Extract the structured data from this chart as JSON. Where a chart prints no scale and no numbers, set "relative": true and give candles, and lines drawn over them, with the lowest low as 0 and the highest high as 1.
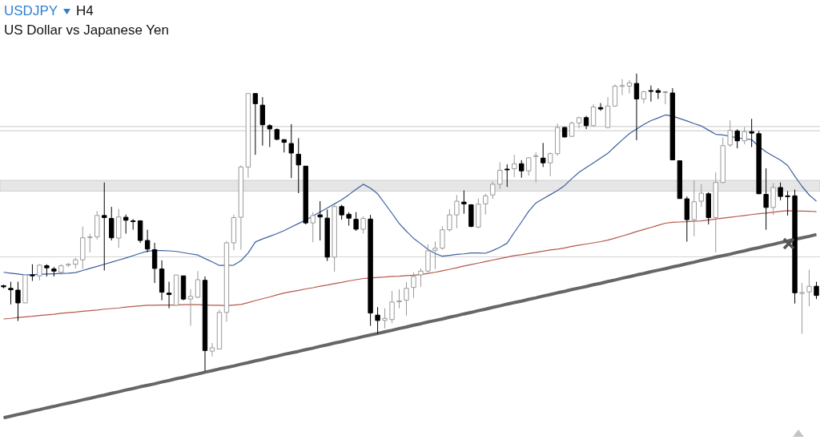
{
  "chart_data": {
    "type": "candlestick",
    "title": "USDJPY",
    "subtitle": "US Dollar vs Japanese Yen",
    "annotations": [
      "H4"
    ],
    "relative": true,
    "grid": false,
    "legend": false,
    "marker": "none",
    "colors": [
      "#000000",
      "#000000",
      "#000000",
      "#ffffff",
      "#000000",
      "#ffffff",
      "#000000",
      "#000000",
      "#ffffff",
      "#ffffff",
      "#ffffff",
      "#ffffff",
      "#ffffff",
      "#ffffff",
      "#000000",
      "#000000",
      "#ffffff",
      "#000000",
      "#000000",
      "#000000",
      "#000000",
      "#000000",
      "#000000",
      "#000000",
      "#ffffff",
      "#000000",
      "#ffffff",
      "#ffffff",
      "#000000",
      "#ffffff",
      "#ffffff",
      "#ffffff",
      "#ffffff",
      "#ffffff",
      "#ffffff",
      "#000000",
      "#000000",
      "#000000",
      "#000000",
      "#000000",
      "#000000",
      "#000000",
      "#000000",
      "#ffffff",
      "#000000",
      "#000000",
      "#ffffff",
      "#000000",
      "#000000",
      "#000000",
      "#ffffff",
      "#000000",
      "#000000",
      "#ffffff",
      "#ffffff",
      "#ffffff",
      "#ffffff",
      "#ffffff",
      "#ffffff",
      "#ffffff",
      "#ffffff",
      "#ffffff",
      "#ffffff",
      "#ffffff",
      "#000000",
      "#000000",
      "#ffffff",
      "#ffffff",
      "#ffffff",
      "#ffffff",
      "#000000",
      "#ffffff",
      "#000000",
      "#ffffff",
      "#ffffff",
      "#000000",
      "#ffffff",
      "#ffffff",
      "#000000",
      "#ffffff",
      "#ffffff",
      "#000000",
      "#ffffff",
      "#000000",
      "#ffffff",
      "#ffffff",
      "#ffffff",
      "#ffffff",
      "#000000",
      "#ffffff",
      "#000000",
      "#000000",
      "#ffffff",
      "#000000",
      "#000000",
      "#000000",
      "#ffffff",
      "#ffffff",
      "#000000",
      "#ffffff",
      "#ffffff",
      "#ffffff",
      "#000000",
      "#ffffff",
      "#000000",
      "#000000",
      "#000000",
      "#ffffff",
      "#000000",
      "#000000",
      "#000000",
      "#ffffff",
      "#ffffff",
      "#000000"
    ],
    "categories": [
      null,
      null,
      null,
      null,
      null,
      null,
      null,
      null,
      null,
      null,
      null,
      null,
      null,
      null,
      null,
      null,
      null,
      null,
      null,
      null,
      null,
      null,
      null,
      null,
      null,
      null,
      null,
      null,
      null,
      null,
      null,
      null,
      null,
      null,
      null,
      null,
      null,
      null,
      null,
      null,
      null,
      null,
      null,
      null,
      null,
      null,
      null,
      null,
      null,
      null,
      null,
      null,
      null,
      null,
      null,
      null,
      null,
      null,
      null,
      null,
      null,
      null,
      null,
      null,
      null,
      null,
      null,
      null,
      null,
      null,
      null,
      null,
      null,
      null,
      null,
      null,
      null,
      null,
      null,
      null,
      null,
      null,
      null,
      null,
      null,
      null,
      null,
      null,
      null,
      null,
      null,
      null,
      null,
      null,
      null,
      null,
      null,
      null,
      null,
      null,
      null,
      null,
      null,
      null,
      null,
      null,
      null,
      null,
      null,
      null,
      null,
      null,
      null,
      null
    ],
    "ohlc": [
      [
        0.287,
        0.29,
        0.278,
        0.283
      ],
      [
        0.278,
        0.3,
        0.224,
        0.273
      ],
      [
        0.272,
        0.3,
        0.168,
        0.229
      ],
      [
        0.229,
        0.323,
        0.229,
        0.323
      ],
      [
        0.323,
        0.359,
        0.303,
        0.32
      ],
      [
        0.32,
        0.359,
        0.305,
        0.356
      ],
      [
        0.354,
        0.359,
        0.318,
        0.347
      ],
      [
        0.343,
        0.35,
        0.318,
        0.336
      ],
      [
        0.332,
        0.359,
        0.323,
        0.354
      ],
      [
        0.356,
        0.363,
        0.35,
        0.359
      ],
      [
        0.359,
        0.381,
        0.345,
        0.374
      ],
      [
        0.374,
        0.486,
        0.343,
        0.448
      ],
      [
        0.449,
        0.462,
        0.399,
        0.451
      ],
      [
        0.451,
        0.538,
        0.442,
        0.523
      ],
      [
        0.523,
        0.634,
        0.338,
        0.516
      ],
      [
        0.513,
        0.552,
        0.439,
        0.448
      ],
      [
        0.447,
        0.545,
        0.414,
        0.518
      ],
      [
        0.517,
        0.526,
        0.462,
        0.507
      ],
      [
        0.505,
        0.511,
        0.475,
        0.503
      ],
      [
        0.505,
        0.507,
        0.431,
        0.439
      ],
      [
        0.439,
        0.475,
        0.399,
        0.41
      ],
      [
        0.408,
        0.431,
        0.296,
        0.345
      ],
      [
        0.343,
        0.372,
        0.238,
        0.265
      ],
      [
        0.262,
        0.3,
        0.211,
        0.257
      ],
      [
        0.221,
        0.323,
        0.22,
        0.323
      ],
      [
        0.32,
        0.32,
        0.238,
        0.242
      ],
      [
        0.242,
        0.275,
        0.152,
        0.251
      ],
      [
        0.248,
        0.336,
        0.245,
        0.307
      ],
      [
        0.305,
        0.318,
        0,
        0.069
      ],
      [
        0.067,
        0.094,
        0.049,
        0.078
      ],
      [
        0.074,
        0.206,
        0.074,
        0.197
      ],
      [
        0.197,
        0.437,
        0.166,
        0.431
      ],
      [
        0.431,
        0.526,
        0.406,
        0.516
      ],
      [
        0.517,
        0.691,
        0.408,
        0.686
      ],
      [
        0.686,
        0.933,
        0.65,
        0.933
      ],
      [
        0.933,
        0.933,
        0.727,
        0.899
      ],
      [
        0.894,
        0.921,
        0.758,
        0.828
      ],
      [
        0.825,
        0.83,
        0.753,
        0.814
      ],
      [
        0.812,
        0.816,
        0.776,
        0.779
      ],
      [
        0.778,
        0.78,
        0.735,
        0.769
      ],
      [
        0.765,
        0.83,
        0.649,
        0.733
      ],
      [
        0.729,
        0.783,
        0.598,
        0.693
      ],
      [
        0.689,
        0.689,
        0.493,
        0.498
      ],
      [
        0.498,
        0.534,
        0.433,
        0.523
      ],
      [
        0.525,
        0.571,
        0.439,
        0.518
      ],
      [
        0.514,
        0.543,
        0.37,
        0.383
      ],
      [
        0.383,
        0.559,
        0.334,
        0.553
      ],
      [
        0.553,
        0.559,
        0.509,
        0.525
      ],
      [
        0.527,
        0.534,
        0.489,
        0.514
      ],
      [
        0.51,
        0.534,
        0.471,
        0.477
      ],
      [
        0.477,
        0.52,
        0.462,
        0.513
      ],
      [
        0.511,
        0.525,
        0.152,
        0.195
      ],
      [
        0.188,
        0.215,
        0.125,
        0.17
      ],
      [
        0.17,
        0.211,
        0.143,
        0.177
      ],
      [
        0.173,
        0.269,
        0.161,
        0.232
      ],
      [
        0.233,
        0.275,
        0.211,
        0.236
      ],
      [
        0.238,
        0.3,
        0.186,
        0.278
      ],
      [
        0.281,
        0.332,
        0.246,
        0.318
      ],
      [
        0.323,
        0.345,
        0.283,
        0.336
      ],
      [
        0.336,
        0.426,
        0.332,
        0.404
      ],
      [
        0.406,
        0.435,
        0.343,
        0.413
      ],
      [
        0.413,
        0.487,
        0.408,
        0.475
      ],
      [
        0.475,
        0.544,
        0.469,
        0.525
      ],
      [
        0.525,
        0.592,
        0.48,
        0.571
      ],
      [
        0.568,
        0.607,
        0.529,
        0.562
      ],
      [
        0.559,
        0.561,
        0.484,
        0.486
      ],
      [
        0.484,
        0.58,
        0.48,
        0.561
      ],
      [
        0.562,
        0.596,
        0.526,
        0.589
      ],
      [
        0.592,
        0.637,
        0.579,
        0.628
      ],
      [
        0.628,
        0.702,
        0.612,
        0.675
      ],
      [
        0.679,
        0.695,
        0.619,
        0.677
      ],
      [
        0.68,
        0.727,
        0.652,
        0.697
      ],
      [
        0.697,
        0.709,
        0.65,
        0.673
      ],
      [
        0.673,
        0.719,
        0.657,
        0.717
      ],
      [
        0.722,
        0.735,
        0.634,
        0.724
      ],
      [
        0.716,
        0.767,
        0.686,
        0.7
      ],
      [
        0.7,
        0.735,
        0.655,
        0.731
      ],
      [
        0.731,
        0.832,
        0.724,
        0.819
      ],
      [
        0.819,
        0.821,
        0.785,
        0.787
      ],
      [
        0.789,
        0.839,
        0.787,
        0.834
      ],
      [
        0.834,
        0.855,
        0.816,
        0.852
      ],
      [
        0.852,
        0.858,
        0.813,
        0.825
      ],
      [
        0.825,
        0.897,
        0.822,
        0.888
      ],
      [
        0.886,
        0.901,
        0.875,
        0.881
      ],
      [
        0.819,
        0.921,
        0.816,
        0.891
      ],
      [
        0.891,
        0.964,
        0.888,
        0.958
      ],
      [
        0.957,
        0.982,
        0.928,
        0.96
      ],
      [
        0.958,
        0.978,
        0.933,
        0.969
      ],
      [
        0.967,
        1,
        0.776,
        0.915
      ],
      [
        0.915,
        0.942,
        0.9,
        0.939
      ],
      [
        0.943,
        0.96,
        0.906,
        0.941
      ],
      [
        0.943,
        0.951,
        0.915,
        0.937
      ],
      [
        0.937,
        0.942,
        0.897,
        0.939
      ],
      [
        0.935,
        0.951,
        0.709,
        0.71
      ],
      [
        0.707,
        0.707,
        0.579,
        0.58
      ],
      [
        0.579,
        0.587,
        0.435,
        0.509
      ],
      [
        0.509,
        0.641,
        0.453,
        0.569
      ],
      [
        0.571,
        0.628,
        0.552,
        0.598
      ],
      [
        0.596,
        0.601,
        0.493,
        0.516
      ],
      [
        0.516,
        0.668,
        0.399,
        0.634
      ],
      [
        0.634,
        0.785,
        0.632,
        0.758
      ],
      [
        0.76,
        0.843,
        0.753,
        0.809
      ],
      [
        0.807,
        0.813,
        0.749,
        0.774
      ],
      [
        0.774,
        0.821,
        0.762,
        0.805
      ],
      [
        0.805,
        0.848,
        0.753,
        0.8
      ],
      [
        0.798,
        0.807,
        0.595,
        0.596
      ],
      [
        0.594,
        0.682,
        0.475,
        0.55
      ],
      [
        0.55,
        0.632,
        0.525,
        0.617
      ],
      [
        0.617,
        0.634,
        0.574,
        0.587
      ],
      [
        0.589,
        0.605,
        0.523,
        0.587
      ],
      [
        0.589,
        0.61,
        0.227,
        0.263
      ],
      [
        0.261,
        0.296,
        0.125,
        0.264
      ],
      [
        0.266,
        0.341,
        0.218,
        0.285
      ],
      [
        0.285,
        0.3,
        0.242,
        0.254
      ]
    ],
    "series": [
      {
        "type": "line",
        "color": "#3d5f9f",
        "values": [
          0.332,
          0.329,
          0.326,
          0.323,
          0.324,
          0.325,
          0.326,
          0.327,
          0.328,
          0.329,
          0.331,
          0.338,
          0.345,
          0.352,
          0.359,
          0.366,
          0.373,
          0.38,
          0.388,
          0.396,
          0.403,
          0.405,
          0.405,
          0.404,
          0.402,
          0.398,
          0.394,
          0.39,
          0.378,
          0.367,
          0.355,
          0.355,
          0.356,
          0.371,
          0.397,
          0.434,
          0.444,
          0.453,
          0.462,
          0.472,
          0.484,
          0.496,
          0.508,
          0.521,
          0.535,
          0.548,
          0.562,
          0.576,
          0.593,
          0.611,
          0.628,
          0.615,
          0.596,
          0.563,
          0.53,
          0.496,
          0.47,
          0.446,
          0.428,
          0.409,
          0.395,
          0.386,
          0.389,
          0.392,
          0.394,
          0.397,
          0.397,
          0.396,
          0.405,
          0.416,
          0.43,
          0.466,
          0.501,
          0.537,
          0.565,
          0.579,
          0.593,
          0.607,
          0.624,
          0.647,
          0.668,
          0.684,
          0.7,
          0.716,
          0.732,
          0.755,
          0.777,
          0.798,
          0.814,
          0.829,
          0.842,
          0.851,
          0.861,
          0.857,
          0.849,
          0.841,
          0.832,
          0.824,
          0.81,
          0.796,
          0.794,
          0.789,
          0.784,
          0.781,
          0.778,
          0.755,
          0.737,
          0.723,
          0.709,
          0.691,
          0.655,
          0.621,
          0.592,
          0.571
        ]
      },
      {
        "type": "line",
        "color": "#b5584a",
        "values": [
          0.175,
          0.177,
          0.18,
          0.182,
          0.184,
          0.187,
          0.189,
          0.191,
          0.194,
          0.196,
          0.198,
          0.201,
          0.203,
          0.205,
          0.208,
          0.21,
          0.212,
          0.215,
          0.217,
          0.219,
          0.221,
          0.221,
          0.222,
          0.222,
          0.222,
          0.223,
          0.223,
          0.223,
          0.222,
          0.221,
          0.221,
          0.22,
          0.222,
          0.224,
          0.23,
          0.237,
          0.243,
          0.249,
          0.256,
          0.262,
          0.267,
          0.271,
          0.276,
          0.28,
          0.285,
          0.289,
          0.294,
          0.298,
          0.303,
          0.307,
          0.311,
          0.313,
          0.315,
          0.316,
          0.318,
          0.319,
          0.321,
          0.322,
          0.324,
          0.328,
          0.332,
          0.337,
          0.342,
          0.347,
          0.353,
          0.358,
          0.363,
          0.368,
          0.373,
          0.378,
          0.383,
          0.388,
          0.391,
          0.395,
          0.399,
          0.403,
          0.407,
          0.41,
          0.414,
          0.419,
          0.423,
          0.427,
          0.431,
          0.435,
          0.44,
          0.447,
          0.454,
          0.461,
          0.469,
          0.476,
          0.483,
          0.49,
          0.497,
          0.5,
          0.501,
          0.502,
          0.504,
          0.505,
          0.508,
          0.511,
          0.514,
          0.517,
          0.52,
          0.523,
          0.526,
          0.529,
          0.531,
          0.534,
          0.537,
          0.539,
          0.538,
          0.538,
          0.537,
          0.536
        ]
      },
      {
        "type": "line",
        "color": "#666666",
        "values": [
          -0.157,
          -0.152,
          -0.146,
          -0.141,
          -0.135,
          -0.13,
          -0.124,
          -0.119,
          -0.113,
          -0.108,
          -0.103,
          -0.097,
          -0.092,
          -0.086,
          -0.081,
          -0.075,
          -0.07,
          -0.064,
          -0.059,
          -0.053,
          -0.048,
          -0.043,
          -0.037,
          -0.032,
          -0.026,
          -0.021,
          -0.015,
          -0.01,
          -0.004,
          0.001,
          0.007,
          0.012,
          0.017,
          0.023,
          0.028,
          0.034,
          0.039,
          0.045,
          0.05,
          0.056,
          0.061,
          0.066,
          0.072,
          0.077,
          0.083,
          0.088,
          0.094,
          0.099,
          0.105,
          0.11,
          0.116,
          0.121,
          0.126,
          0.132,
          0.137,
          0.143,
          0.148,
          0.154,
          0.159,
          0.165,
          0.17,
          0.175,
          0.181,
          0.186,
          0.192,
          0.197,
          0.203,
          0.208,
          0.214,
          0.219,
          0.225,
          0.23,
          0.235,
          0.241,
          0.246,
          0.252,
          0.257,
          0.263,
          0.268,
          0.274,
          0.279,
          0.284,
          0.29,
          0.295,
          0.301,
          0.306,
          0.312,
          0.317,
          0.323,
          0.328,
          0.334,
          0.339,
          0.344,
          0.35,
          0.355,
          0.361,
          0.366,
          0.372,
          0.377,
          0.383,
          0.388,
          0.393,
          0.399,
          0.404,
          0.41,
          0.415,
          0.421,
          0.426,
          0.432,
          0.437,
          0.443,
          0.448,
          0.453,
          0.459
        ]
      }
    ],
    "ref_lines": [
      {
        "axis": "y",
        "value": 0.822,
        "color": "#c8c8c8"
      },
      {
        "axis": "y",
        "value": 0.808,
        "color": "#c8c8c8"
      },
      {
        "axis": "y",
        "value": 0.384,
        "color": "#d4d4d4"
      }
    ],
    "bands": [
      {
        "axis": "y",
        "from": 0.605,
        "to": 0.641,
        "color": "#e6e6e6"
      }
    ]
  }
}
